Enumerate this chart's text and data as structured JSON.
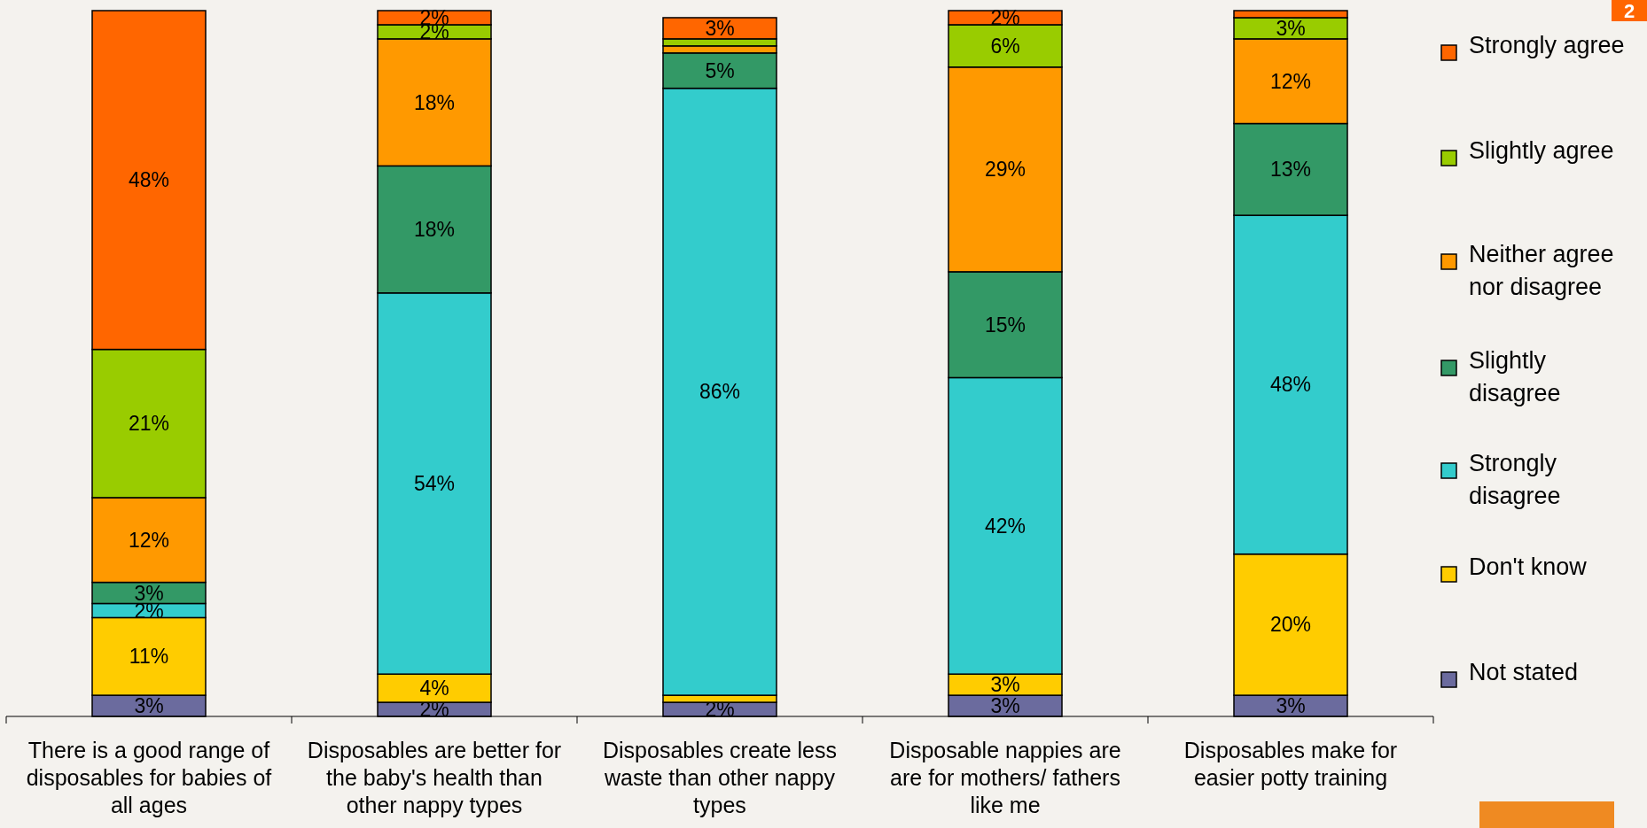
{
  "chart_data": {
    "type": "bar",
    "stacked": true,
    "legend": "right",
    "categories": [
      "There is a good range of disposables for babies of all ages",
      "Disposables are better for the baby's health than other nappy types",
      "Disposables create less waste than other nappy types",
      "Disposable nappies are are for mothers/ fathers like me",
      "Disposables make for easier potty training"
    ],
    "series": [
      {
        "name": "Not stated",
        "color": "#6b6b9e",
        "values": [
          3,
          2,
          2,
          3,
          3
        ],
        "value_labels": [
          "3%",
          "2%",
          "2%",
          "3%",
          "3%"
        ]
      },
      {
        "name": "Don't know",
        "color": "#ffcc00",
        "values": [
          11,
          4,
          1,
          3,
          20
        ],
        "value_labels": [
          "11%",
          "4%",
          null,
          "3%",
          "20%"
        ]
      },
      {
        "name": "Strongly disagree",
        "color": "#33cccc",
        "values": [
          2,
          54,
          86,
          42,
          48
        ],
        "value_labels": [
          "2%",
          "54%",
          "86%",
          "42%",
          "48%"
        ]
      },
      {
        "name": "Slightly disagree",
        "color": "#339966",
        "values": [
          3,
          18,
          5,
          15,
          13
        ],
        "value_labels": [
          "3%",
          "18%",
          "5%",
          "15%",
          "13%"
        ]
      },
      {
        "name": "Neither agree nor disagree",
        "color": "#ff9900",
        "values": [
          12,
          18,
          1,
          29,
          12
        ],
        "value_labels": [
          "12%",
          "18%",
          null,
          "29%",
          "12%"
        ]
      },
      {
        "name": "Slightly agree",
        "color": "#99cc00",
        "values": [
          21,
          2,
          1,
          6,
          3
        ],
        "value_labels": [
          "21%",
          "2%",
          null,
          "6%",
          "3%"
        ]
      },
      {
        "name": "Strongly agree",
        "color": "#ff6600",
        "values": [
          48,
          2,
          3,
          2,
          1
        ],
        "value_labels": [
          "48%",
          "2%",
          "3%",
          "2%",
          null
        ]
      }
    ],
    "annotations": [
      "2"
    ]
  }
}
